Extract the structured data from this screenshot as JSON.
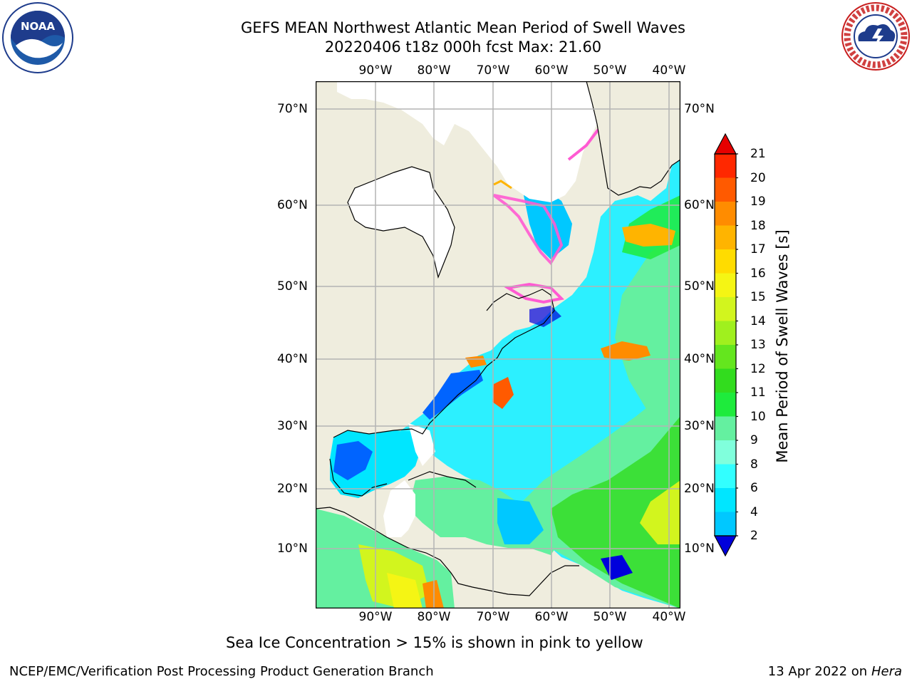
{
  "header": {
    "title_line1": "GEFS MEAN Northwest Atlantic Mean Period of Swell Waves",
    "title_line2": "20220406 t18z 000h fcst   Max: 21.60"
  },
  "logos": {
    "left": {
      "name": "noaa-logo",
      "text": "NOAA"
    },
    "right": {
      "name": "nws-logo",
      "text": "NATIONAL WEATHER SERVICE"
    }
  },
  "map": {
    "lon_ticks": [
      "90°W",
      "80°W",
      "70°W",
      "60°W",
      "50°W",
      "40°W"
    ],
    "lat_ticks": [
      "70°N",
      "60°N",
      "50°N",
      "40°N",
      "30°N",
      "20°N",
      "10°N"
    ],
    "colors": {
      "land": "#efedde",
      "grid": "#b4b4b4",
      "coast": "#000000"
    }
  },
  "colorbar": {
    "title": "Mean Period of Swell Waves [s]",
    "labels": [
      "2",
      "4",
      "6",
      "8",
      "9",
      "10",
      "11",
      "12",
      "13",
      "14",
      "15",
      "16",
      "17",
      "18",
      "19",
      "20",
      "21"
    ],
    "colors": [
      "#0064ff",
      "#00c8ff",
      "#00e6ff",
      "#32ffff",
      "#80ffdc",
      "#64f0a0",
      "#1eeb3c",
      "#32dc1e",
      "#64e61e",
      "#a0f01e",
      "#d2f51e",
      "#f5f514",
      "#ffdc00",
      "#ffb400",
      "#ff8c00",
      "#ff5a00",
      "#ff2800"
    ],
    "under_color": "#0000dc",
    "over_color": "#e60000"
  },
  "caption": "Sea Ice Concentration > 15% is shown in pink to yellow",
  "footer": {
    "left": "NCEP/EMC/Verification Post Processing Product Generation Branch",
    "right_prefix": "13 Apr 2022 on ",
    "right_host": "Hera"
  }
}
